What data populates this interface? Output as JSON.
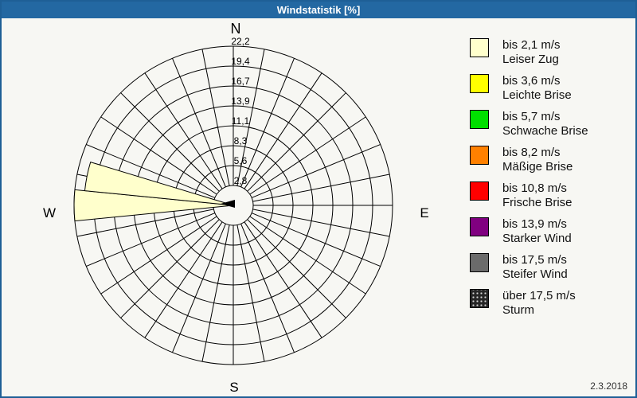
{
  "window": {
    "title": "Windstatistik [%]",
    "title_bar_color": "#2368A2",
    "frame_color": "#1E5F96",
    "date": "2.3.2018"
  },
  "chart_data": {
    "type": "windrose",
    "title": "Windstatistik [%]",
    "unit": "%",
    "sector_count": 32,
    "sector_width_deg": 11.25,
    "ring_count": 8,
    "max_value": 22.2,
    "ring_labels_inner_to_outer": [
      "2,8",
      "5,6",
      "8,3",
      "11,1",
      "13,9",
      "16,7",
      "19,4",
      "22,2"
    ],
    "compass_labels": {
      "n": "N",
      "e": "E",
      "s": "S",
      "w": "W"
    },
    "grid_color": "#000000",
    "wind_sectors": [
      {
        "direction": "W",
        "direction_deg": 270,
        "value": 22.2,
        "category": "bis 2,1 m/s",
        "color": "#FFFFCC"
      },
      {
        "direction": "WbN",
        "direction_deg": 281.25,
        "value": 20.8,
        "category": "bis 2,1 m/s",
        "color": "#FFFFCC"
      }
    ],
    "center_arrow": {
      "direction_deg": 270,
      "color": "#000000"
    }
  },
  "legend": {
    "items": [
      {
        "color": "#FFFFCC",
        "speed": "bis 2,1 m/s",
        "name": "Leiser Zug",
        "pattern": "solid"
      },
      {
        "color": "#FFFF00",
        "speed": "bis 3,6 m/s",
        "name": "Leichte Brise",
        "pattern": "solid"
      },
      {
        "color": "#00DF00",
        "speed": "bis 5,7 m/s",
        "name": "Schwache Brise",
        "pattern": "solid"
      },
      {
        "color": "#FF8000",
        "speed": "bis 8,2 m/s",
        "name": "Mäßige Brise",
        "pattern": "solid"
      },
      {
        "color": "#FF0000",
        "speed": "bis 10,8 m/s",
        "name": "Frische Brise",
        "pattern": "solid"
      },
      {
        "color": "#800080",
        "speed": "bis 13,9 m/s",
        "name": "Starker Wind",
        "pattern": "solid"
      },
      {
        "color": "#6B6B6B",
        "speed": "bis 17,5 m/s",
        "name": "Steifer Wind",
        "pattern": "solid"
      },
      {
        "color": "#262626",
        "speed": "über 17,5 m/s",
        "name": "Sturm",
        "pattern": "speckled"
      }
    ]
  }
}
